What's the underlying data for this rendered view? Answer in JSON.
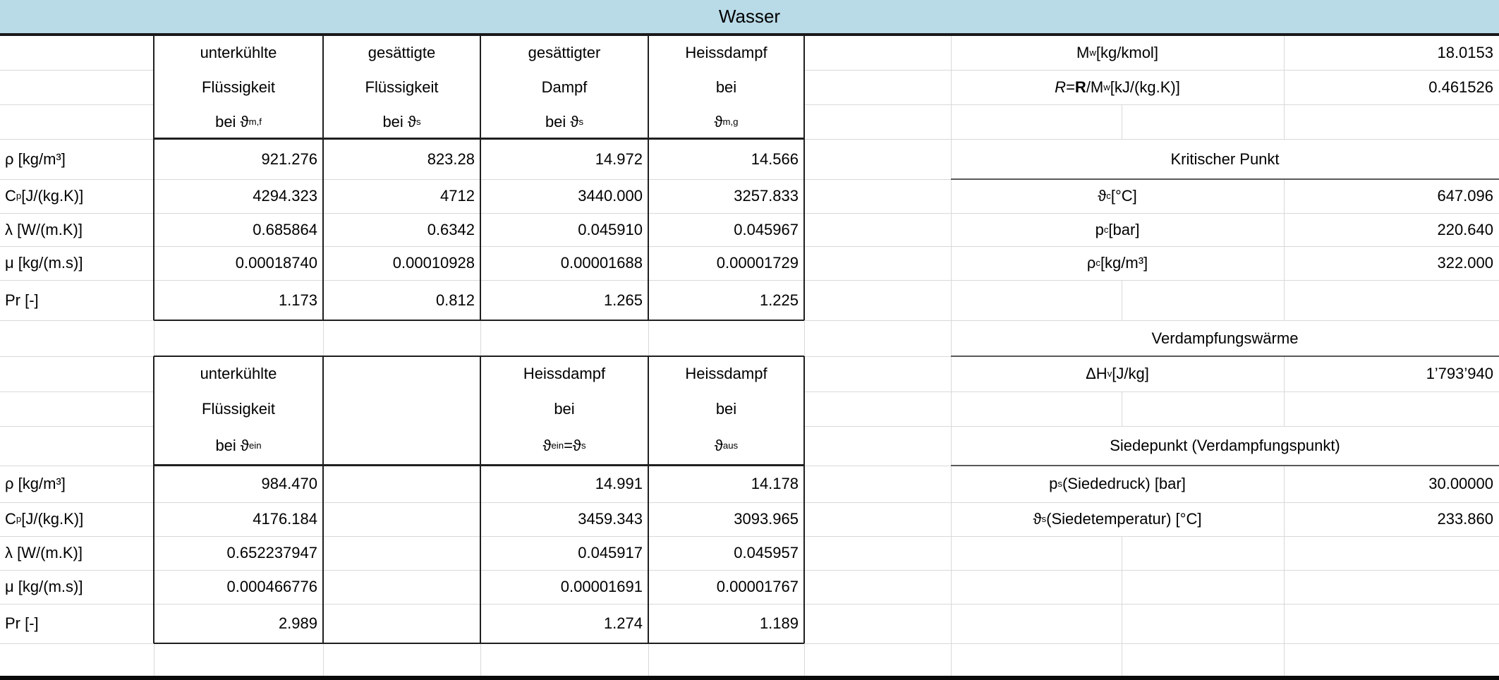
{
  "sheet_title": "Wasser",
  "table1": {
    "columns": [
      {
        "line1": "unterkühlte",
        "line2": "Flüssigkeit",
        "line3": "bei ϑ<sub>m,f</sub>"
      },
      {
        "line1": "gesättigte",
        "line2": "Flüssigkeit",
        "line3": "bei ϑ<sub>s</sub>"
      },
      {
        "line1": "gesättigter",
        "line2": "Dampf",
        "line3": "bei ϑ<sub>s</sub>"
      },
      {
        "line1": "Heissdampf",
        "line2": "bei",
        "line3": "ϑ<sub>m,g</sub>"
      }
    ],
    "rows": [
      {
        "label": "ρ [kg/m³]",
        "v1": "921.276",
        "v2": "823.28",
        "v3": "14.972",
        "v4": "14.566"
      },
      {
        "label": "C<sub>p</sub> [J/(kg.K)]",
        "v1": "4294.323",
        "v2": "4712",
        "v3": "3440.000",
        "v4": "3257.833"
      },
      {
        "label": "λ [W/(m.K)]",
        "v1": "0.685864",
        "v2": "0.6342",
        "v3": "0.045910",
        "v4": "0.045967"
      },
      {
        "label": "μ [kg/(m.s)]",
        "v1": "0.00018740",
        "v2": "0.00010928",
        "v3": "0.00001688",
        "v4": "0.00001729"
      },
      {
        "label": "Pr [-]",
        "v1": "1.173",
        "v2": "0.812",
        "v3": "1.265",
        "v4": "1.225"
      }
    ]
  },
  "table2": {
    "columns": [
      {
        "line1": "unterkühlte",
        "line2": "Flüssigkeit",
        "line3": "bei ϑ<sub>ein</sub>"
      },
      {
        "line1": "",
        "line2": "",
        "line3": ""
      },
      {
        "line1": "Heissdampf",
        "line2": "bei",
        "line3": "ϑ<sub>ein</sub>=ϑ<sub>s</sub>"
      },
      {
        "line1": "Heissdampf",
        "line2": "bei",
        "line3": "ϑ<sub>aus</sub>"
      }
    ],
    "rows": [
      {
        "label": "ρ [kg/m³]",
        "v1": "984.470",
        "v2": "",
        "v3": "14.991",
        "v4": "14.178"
      },
      {
        "label": "C<sub>p</sub> [J/(kg.K)]",
        "v1": "4176.184",
        "v2": "",
        "v3": "3459.343",
        "v4": "3093.965"
      },
      {
        "label": "λ [W/(m.K)]",
        "v1": "0.652237947",
        "v2": "",
        "v3": "0.045917",
        "v4": "0.045957"
      },
      {
        "label": "μ [kg/(m.s)]",
        "v1": "0.000466776",
        "v2": "",
        "v3": "0.00001691",
        "v4": "0.00001767"
      },
      {
        "label": "Pr [-]",
        "v1": "2.989",
        "v2": "",
        "v3": "1.274",
        "v4": "1.189"
      }
    ]
  },
  "right_panel": {
    "properties": [
      {
        "label": "M<sub>w</sub> [kg/kmol]",
        "value": "18.0153"
      },
      {
        "label": "<i>R</i> = <b>R</b>/M<sub>w</sub> [kJ/(kg.K)]",
        "value": "0.461526"
      }
    ],
    "critical_point": {
      "title": "Kritischer Punkt",
      "rows": [
        {
          "label": "ϑ<sub>c</sub> [°C]",
          "value": "647.096"
        },
        {
          "label": "p<sub>c</sub> [bar]",
          "value": "220.640"
        },
        {
          "label": "ρ<sub>c</sub> [kg/m³]",
          "value": "322.000"
        }
      ]
    },
    "heat_of_vaporization": {
      "title": "Verdampfungswärme",
      "rows": [
        {
          "label": "ΔH<sub>v</sub> [J/kg]",
          "value": "1’793’940"
        }
      ]
    },
    "boiling_point": {
      "title": "Siedepunkt (Verdampfungspunkt)",
      "rows": [
        {
          "label": "p<sub>s</sub> (Siededruck) [bar]",
          "value": "30.00000"
        },
        {
          "label": "ϑ<sub>s</sub> (Siedetemperatur) [°C]",
          "value": "233.860"
        }
      ]
    }
  },
  "colors": {
    "band_fill": "#b9dbe8",
    "grid_line": "#d9d9d9",
    "table_border": "#1f1f1f",
    "section_underline": "#595959"
  }
}
